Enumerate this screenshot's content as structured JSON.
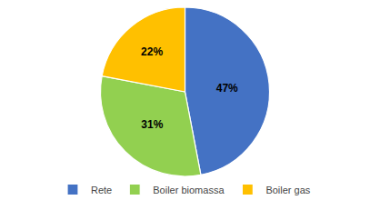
{
  "chart_data": {
    "type": "pie",
    "categories": [
      "Rete",
      "Boiler biomassa",
      "Boiler gas"
    ],
    "values": [
      47,
      31,
      22
    ],
    "value_labels": [
      "47%",
      "31%",
      "22%"
    ],
    "colors": [
      "#4472C4",
      "#92D050",
      "#FFC000"
    ],
    "data_labels": true,
    "legend": "bottom"
  }
}
